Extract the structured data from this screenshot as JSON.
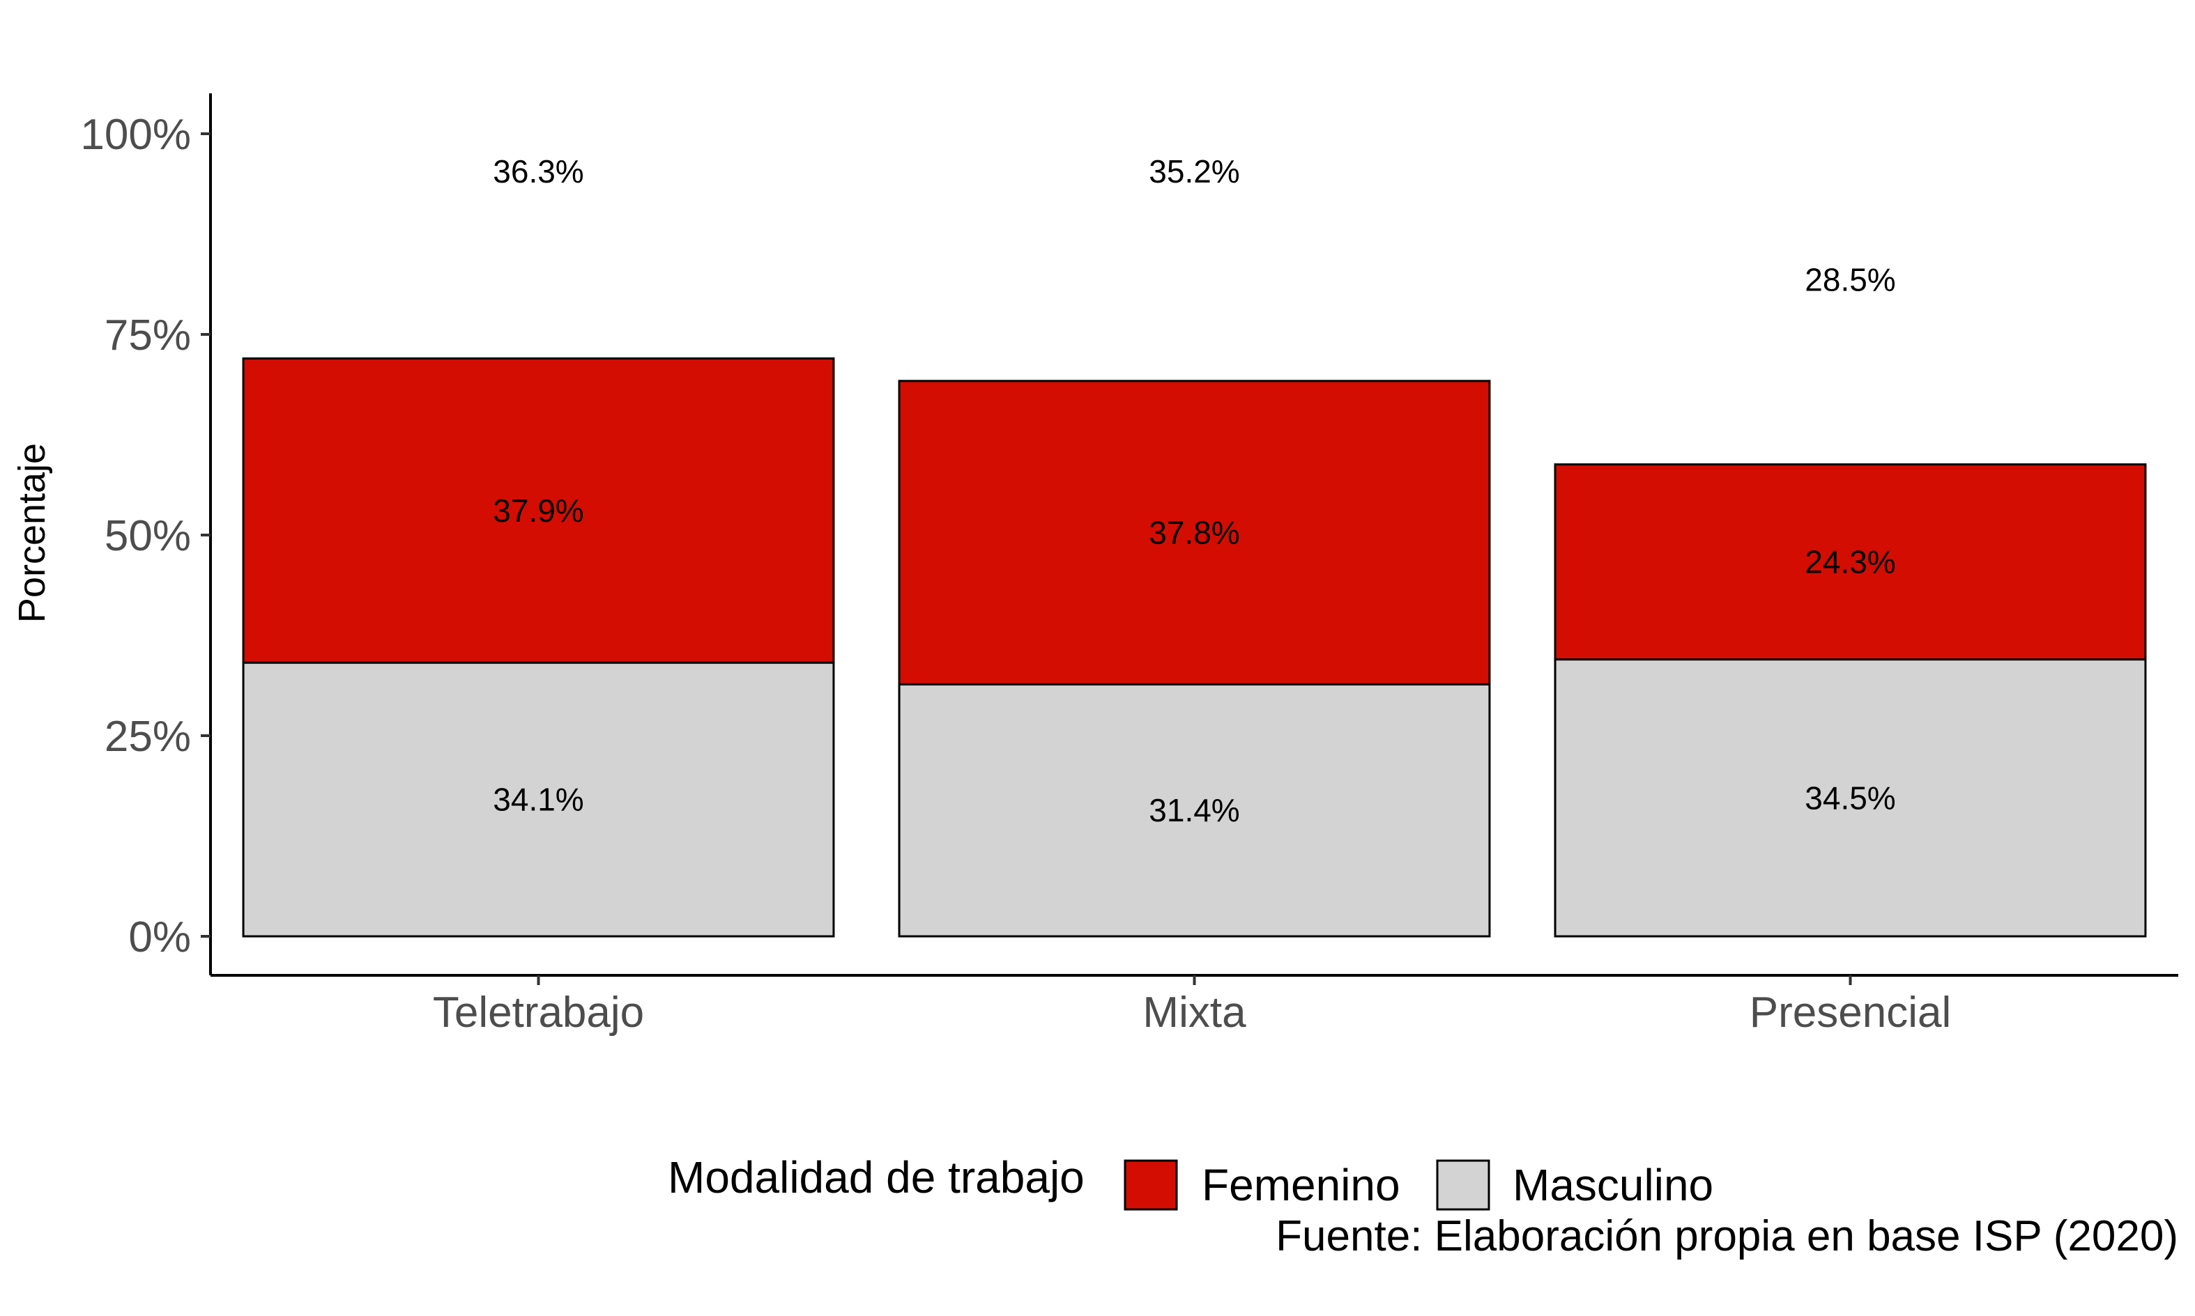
{
  "chart_data": {
    "type": "bar",
    "stacked": true,
    "categories": [
      "Teletrabajo",
      "Mixta",
      "Presencial"
    ],
    "series": [
      {
        "name": "Masculino",
        "values": [
          34.1,
          31.4,
          34.5
        ],
        "labels": [
          "34.1%",
          "31.4%",
          "34.5%"
        ],
        "color": "#d3d3d3"
      },
      {
        "name": "Femenino",
        "values": [
          37.9,
          37.8,
          24.3
        ],
        "labels": [
          "37.9%",
          "37.8%",
          "24.3%"
        ],
        "color": "#d40d02"
      }
    ],
    "top_labels": [
      "36.3%",
      "35.2%",
      "28.5%"
    ],
    "top_label_values": [
      95.3,
      95.3,
      81.8
    ],
    "ylabel": "Porcentaje",
    "xlabel": "",
    "ylim": [
      0,
      105
    ],
    "yticks": [
      0,
      25,
      50,
      75,
      100
    ],
    "ytick_labels": [
      "0%",
      "25%",
      "50%",
      "75%",
      "100%"
    ],
    "legend": {
      "title": "Modalidad de trabajo",
      "placement": "bottom",
      "entries": [
        {
          "label": "Femenino",
          "color": "#d40d02"
        },
        {
          "label": "Masculino",
          "color": "#d3d3d3"
        }
      ]
    },
    "caption": "Fuente: Elaboración propia en base ISP (2020)",
    "grid": false
  }
}
